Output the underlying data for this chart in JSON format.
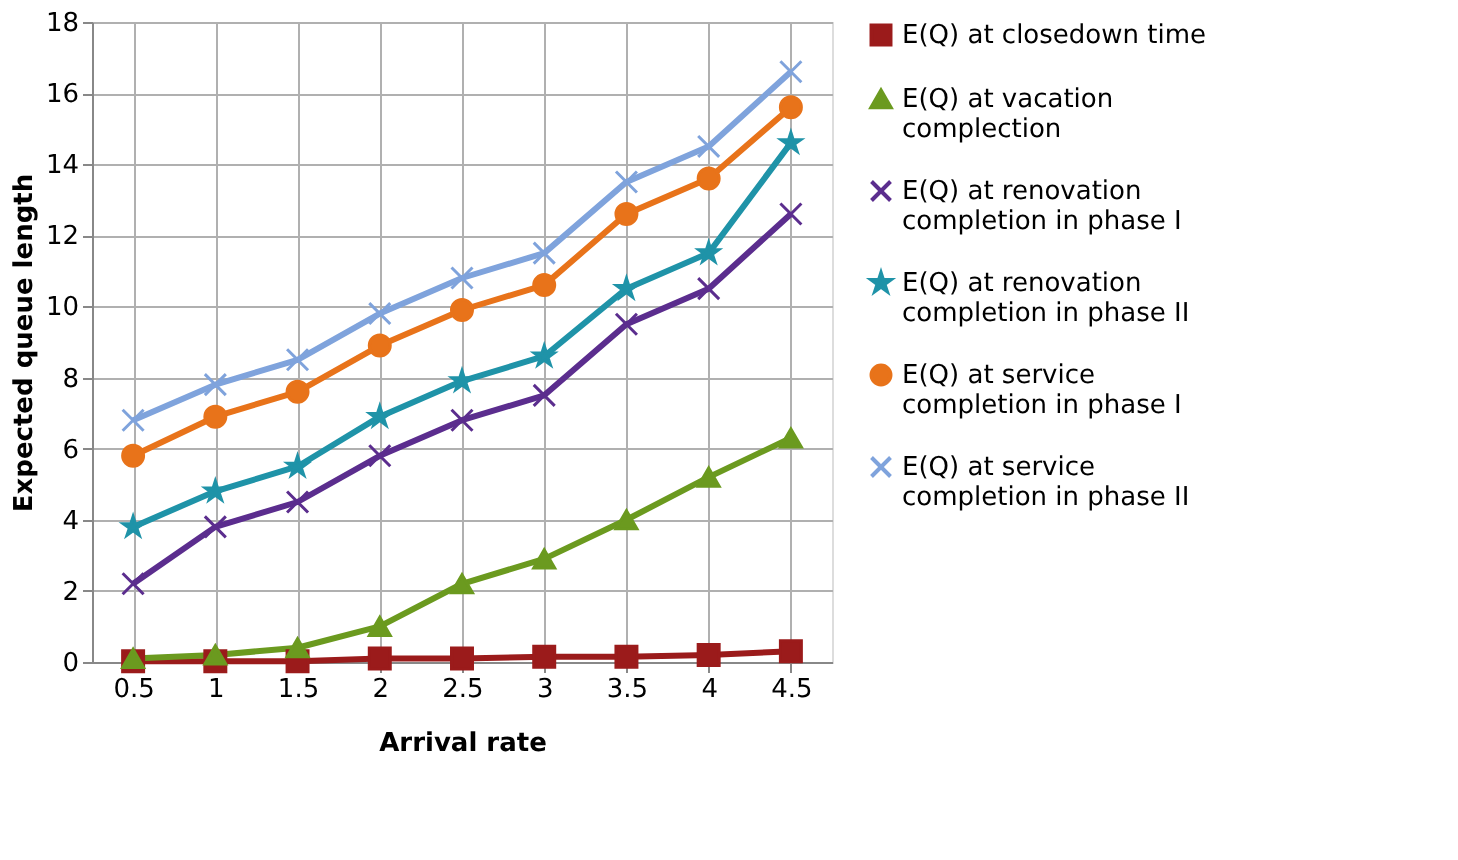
{
  "chart_data": {
    "type": "line",
    "xlabel": "Arrival rate",
    "ylabel": "Expected queue length",
    "categories": [
      "0.5",
      "1",
      "1.5",
      "2",
      "2.5",
      "3",
      "3.5",
      "4",
      "4.5"
    ],
    "ylim": [
      0,
      18
    ],
    "yticks": [
      0,
      2,
      4,
      6,
      8,
      10,
      12,
      14,
      16,
      18
    ],
    "grid": true,
    "legend": "right",
    "series": [
      {
        "name": "E(Q) at closedown time",
        "color": "#9b1b1b",
        "marker": "square",
        "values": [
          0.02,
          0.02,
          0.02,
          0.1,
          0.1,
          0.15,
          0.15,
          0.2,
          0.3
        ]
      },
      {
        "name": "E(Q) at vacation complection",
        "color": "#6b9a1f",
        "marker": "triangle",
        "values": [
          0.1,
          0.2,
          0.4,
          1.0,
          2.2,
          2.9,
          4.0,
          5.2,
          6.3
        ]
      },
      {
        "name": "E(Q) at renovation completion in phase I",
        "color": "#5b2d8e",
        "marker": "cross",
        "values": [
          2.2,
          3.8,
          4.5,
          5.8,
          6.8,
          7.5,
          9.5,
          10.5,
          12.6
        ]
      },
      {
        "name": "E(Q) at renovation completion in phase II",
        "color": "#1f93a8",
        "marker": "star",
        "values": [
          3.8,
          4.8,
          5.5,
          6.9,
          7.9,
          8.6,
          10.5,
          11.5,
          14.6
        ]
      },
      {
        "name": "E(Q) at service completion in phase I",
        "color": "#e8731a",
        "marker": "circle",
        "values": [
          5.8,
          6.9,
          7.6,
          8.9,
          9.9,
          10.6,
          12.6,
          13.6,
          15.6
        ]
      },
      {
        "name": "E(Q) at service completion in phase II",
        "color": "#7fa3dc",
        "marker": "cross",
        "values": [
          6.8,
          7.8,
          8.5,
          9.8,
          10.8,
          11.5,
          13.5,
          14.5,
          16.6
        ]
      }
    ]
  }
}
